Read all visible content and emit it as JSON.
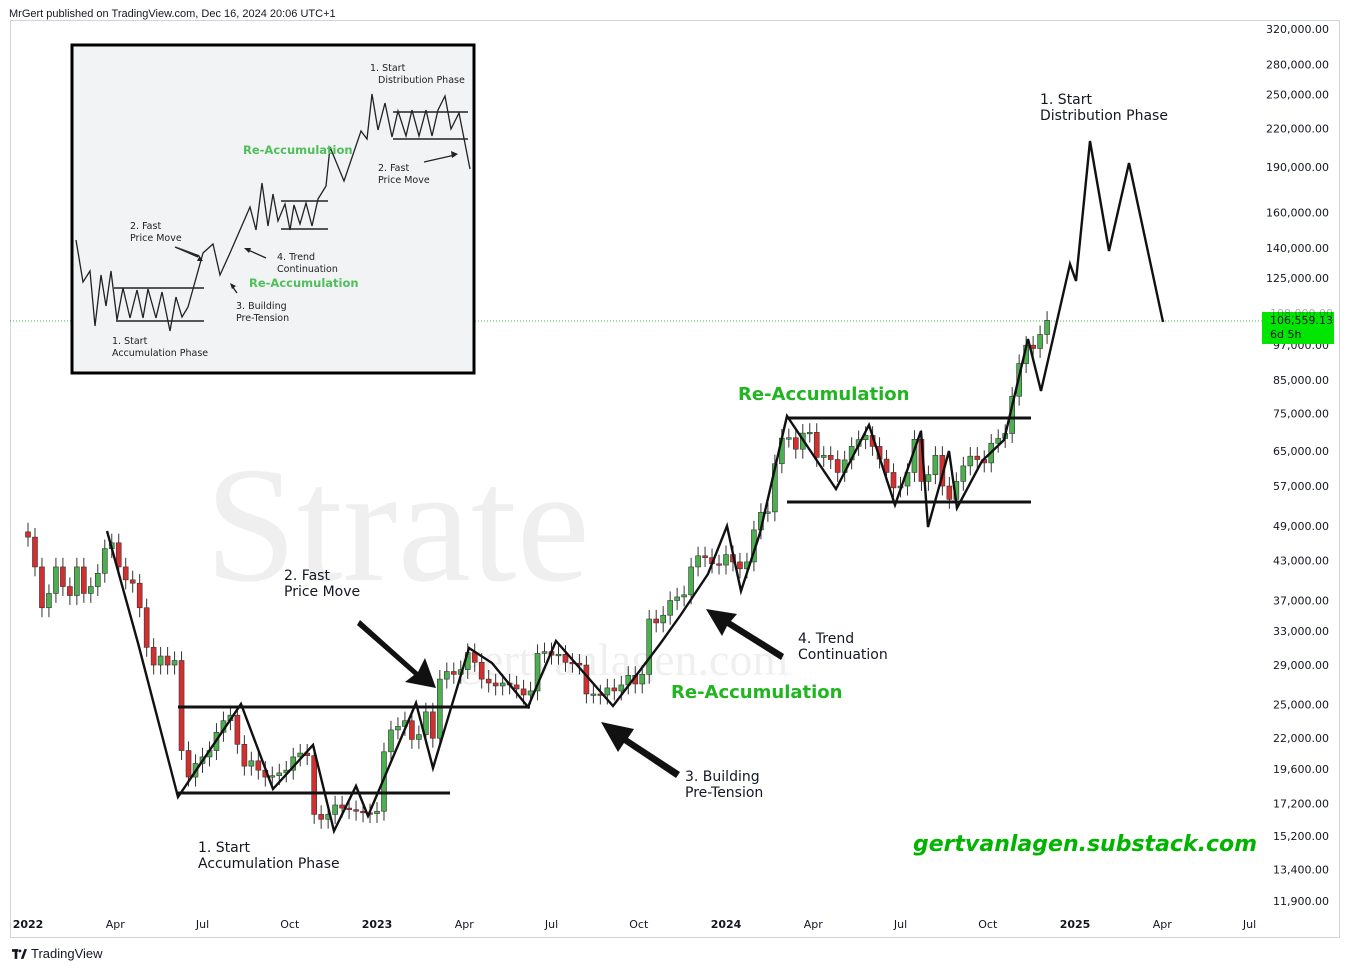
{
  "header": {
    "published_text": "MrGert published on TradingView.com, Dec 16, 2024 20:06 UTC+1"
  },
  "footer": {
    "logo_text": "TradingView"
  },
  "watermark": {
    "main_text": "Strate",
    "url_text": "gertvanlagen.com"
  },
  "colors": {
    "bull": "#4caf50",
    "bear": "#d32f2f",
    "green_text": "#22b522",
    "price_tag": "#00e600",
    "link": "#00b400"
  },
  "chart_data": {
    "type": "candlestick",
    "scale": "log",
    "y_ticks": [
      320000,
      280000,
      250000,
      220000,
      190000,
      160000,
      140000,
      125000,
      108000,
      97000,
      85000,
      75000,
      65000,
      57000,
      49000,
      43000,
      37000,
      33000,
      29000,
      25000,
      22000,
      19600,
      17200,
      15200,
      13400,
      11900
    ],
    "y_tick_labels": [
      "320,000.00",
      "280,000.00",
      "250,000.00",
      "220,000.00",
      "190,000.00",
      "160,000.00",
      "140,000.00",
      "125,000.00",
      "108,000.00",
      "97,000.00",
      "85,000.00",
      "75,000.00",
      "65,000.00",
      "57,000.00",
      "49,000.00",
      "43,000.00",
      "37,000.00",
      "33,000.00",
      "29,000.00",
      "25,000.00",
      "22,000.00",
      "19,600.00",
      "17,200.00",
      "15,200.00",
      "13,400.00",
      "11,900.00"
    ],
    "x_ticks": [
      {
        "label": "2022",
        "year": true,
        "t": 2022.0
      },
      {
        "label": "Apr",
        "year": false,
        "t": 2022.25
      },
      {
        "label": "Jul",
        "year": false,
        "t": 2022.5
      },
      {
        "label": "Oct",
        "year": false,
        "t": 2022.75
      },
      {
        "label": "2023",
        "year": true,
        "t": 2023.0
      },
      {
        "label": "Apr",
        "year": false,
        "t": 2023.25
      },
      {
        "label": "Jul",
        "year": false,
        "t": 2023.5
      },
      {
        "label": "Oct",
        "year": false,
        "t": 2023.75
      },
      {
        "label": "2024",
        "year": true,
        "t": 2024.0
      },
      {
        "label": "Apr",
        "year": false,
        "t": 2024.25
      },
      {
        "label": "Jul",
        "year": false,
        "t": 2024.5
      },
      {
        "label": "Oct",
        "year": false,
        "t": 2024.75
      },
      {
        "label": "2025",
        "year": true,
        "t": 2025.0
      },
      {
        "label": "Apr",
        "year": false,
        "t": 2025.25
      },
      {
        "label": "Jul",
        "year": false,
        "t": 2025.5
      }
    ],
    "current_price": {
      "value": 106559.13,
      "label": "106,559.13",
      "countdown": "6d 5h",
      "hidden_tick": "108,000.00"
    },
    "candles_weekly_close": [
      [
        2022.0,
        47000
      ],
      [
        2022.02,
        42000
      ],
      [
        2022.04,
        36000
      ],
      [
        2022.06,
        38000
      ],
      [
        2022.08,
        42000
      ],
      [
        2022.1,
        39000
      ],
      [
        2022.12,
        37700
      ],
      [
        2022.14,
        42000
      ],
      [
        2022.16,
        38000
      ],
      [
        2022.18,
        39000
      ],
      [
        2022.2,
        41000
      ],
      [
        2022.22,
        45000
      ],
      [
        2022.24,
        46000
      ],
      [
        2022.26,
        42000
      ],
      [
        2022.28,
        40000
      ],
      [
        2022.3,
        39500
      ],
      [
        2022.32,
        36000
      ],
      [
        2022.34,
        31000
      ],
      [
        2022.36,
        29000
      ],
      [
        2022.38,
        30000
      ],
      [
        2022.4,
        29000
      ],
      [
        2022.42,
        29500
      ],
      [
        2022.44,
        21000
      ],
      [
        2022.46,
        19000
      ],
      [
        2022.48,
        20000
      ],
      [
        2022.5,
        20500
      ],
      [
        2022.52,
        21000
      ],
      [
        2022.54,
        22500
      ],
      [
        2022.56,
        23500
      ],
      [
        2022.58,
        24000
      ],
      [
        2022.6,
        21500
      ],
      [
        2022.62,
        19800
      ],
      [
        2022.64,
        20200
      ],
      [
        2022.66,
        19500
      ],
      [
        2022.68,
        19000
      ],
      [
        2022.7,
        19100
      ],
      [
        2022.72,
        19300
      ],
      [
        2022.74,
        19500
      ],
      [
        2022.76,
        20500
      ],
      [
        2022.78,
        20800
      ],
      [
        2022.8,
        20600
      ],
      [
        2022.82,
        16500
      ],
      [
        2022.84,
        16200
      ],
      [
        2022.86,
        16500
      ],
      [
        2022.88,
        17100
      ],
      [
        2022.9,
        16900
      ],
      [
        2022.92,
        16800
      ],
      [
        2022.94,
        16700
      ],
      [
        2022.96,
        16600
      ],
      [
        2022.98,
        16550
      ],
      [
        2023.0,
        16700
      ],
      [
        2023.02,
        20900
      ],
      [
        2023.04,
        22700
      ],
      [
        2023.06,
        23000
      ],
      [
        2023.08,
        23500
      ],
      [
        2023.1,
        21900
      ],
      [
        2023.12,
        22300
      ],
      [
        2023.14,
        24300
      ],
      [
        2023.16,
        22000
      ],
      [
        2023.18,
        27500
      ],
      [
        2023.2,
        28300
      ],
      [
        2023.22,
        28000
      ],
      [
        2023.24,
        28500
      ],
      [
        2023.26,
        30400
      ],
      [
        2023.28,
        29300
      ],
      [
        2023.3,
        27500
      ],
      [
        2023.32,
        27100
      ],
      [
        2023.34,
        26800
      ],
      [
        2023.36,
        27100
      ],
      [
        2023.38,
        26900
      ],
      [
        2023.4,
        26500
      ],
      [
        2023.42,
        25900
      ],
      [
        2023.44,
        26300
      ],
      [
        2023.46,
        30300
      ],
      [
        2023.48,
        30500
      ],
      [
        2023.5,
        30100
      ],
      [
        2023.52,
        30200
      ],
      [
        2023.54,
        29300
      ],
      [
        2023.56,
        29200
      ],
      [
        2023.58,
        29000
      ],
      [
        2023.6,
        26000
      ],
      [
        2023.62,
        26000
      ],
      [
        2023.64,
        25900
      ],
      [
        2023.66,
        26600
      ],
      [
        2023.68,
        26300
      ],
      [
        2023.7,
        26900
      ],
      [
        2023.72,
        27900
      ],
      [
        2023.74,
        27000
      ],
      [
        2023.76,
        28000
      ],
      [
        2023.78,
        34500
      ],
      [
        2023.8,
        34000
      ],
      [
        2023.82,
        35000
      ],
      [
        2023.84,
        37000
      ],
      [
        2023.86,
        37500
      ],
      [
        2023.88,
        37800
      ],
      [
        2023.9,
        42000
      ],
      [
        2023.92,
        43800
      ],
      [
        2023.94,
        43500
      ],
      [
        2023.96,
        42500
      ],
      [
        2023.98,
        42300
      ],
      [
        2024.0,
        44000
      ],
      [
        2024.02,
        42800
      ],
      [
        2024.04,
        41700
      ],
      [
        2024.06,
        42800
      ],
      [
        2024.08,
        48300
      ],
      [
        2024.1,
        51600
      ],
      [
        2024.12,
        51700
      ],
      [
        2024.14,
        62000
      ],
      [
        2024.16,
        68300
      ],
      [
        2024.18,
        68400
      ],
      [
        2024.2,
        65500
      ],
      [
        2024.22,
        69600
      ],
      [
        2024.24,
        69800
      ],
      [
        2024.26,
        63500
      ],
      [
        2024.28,
        64000
      ],
      [
        2024.3,
        63000
      ],
      [
        2024.32,
        60000
      ],
      [
        2024.34,
        62900
      ],
      [
        2024.36,
        66200
      ],
      [
        2024.38,
        67900
      ],
      [
        2024.4,
        69000
      ],
      [
        2024.42,
        66200
      ],
      [
        2024.44,
        63100
      ],
      [
        2024.46,
        60000
      ],
      [
        2024.48,
        56600
      ],
      [
        2024.5,
        57000
      ],
      [
        2024.52,
        60000
      ],
      [
        2024.54,
        68000
      ],
      [
        2024.56,
        58000
      ],
      [
        2024.58,
        59500
      ],
      [
        2024.6,
        64000
      ],
      [
        2024.62,
        57000
      ],
      [
        2024.64,
        54200
      ],
      [
        2024.66,
        58000
      ],
      [
        2024.68,
        61500
      ],
      [
        2024.7,
        63800
      ],
      [
        2024.72,
        63000
      ],
      [
        2024.74,
        62200
      ],
      [
        2024.76,
        67000
      ],
      [
        2024.78,
        68200
      ],
      [
        2024.8,
        69500
      ],
      [
        2024.82,
        80000
      ],
      [
        2024.84,
        90500
      ],
      [
        2024.86,
        97000
      ],
      [
        2024.88,
        95800
      ],
      [
        2024.9,
        101000
      ],
      [
        2024.92,
        106559
      ]
    ],
    "projection_path": [
      [
        2024.9,
        101000
      ],
      [
        2024.96,
        123000
      ],
      [
        2025.0,
        213000
      ],
      [
        2025.1,
        145000
      ],
      [
        2025.15,
        200000
      ],
      [
        2025.25,
        107000
      ]
    ],
    "annotations": {
      "start_accumulation": "1. Start\nAccumulation Phase",
      "fast_price_move": "2. Fast\nPrice Move",
      "building_pretension": "3. Building\nPre-Tension",
      "trend_continuation": "4. Trend\nContinuation",
      "reaccumulation_1": "Re-Accumulation",
      "reaccumulation_2": "Re-Accumulation",
      "start_distribution": "1. Start\nDistribution Phase",
      "substack_link": "gertvanlagen.substack.com"
    },
    "inset": {
      "texts": {
        "start_accumulation": "1. Start\nAccumulation Phase",
        "fast_price_move": "2. Fast\nPrice Move",
        "building_pretension": "3. Building\nPre-Tension",
        "trend_continuation": "4. Trend\nContinuation",
        "reaccumulation_a": "Re-Accumulation",
        "reaccumulation_b": "Re-Accumulation",
        "start_distribution": "1. Start\nDistribution Phase",
        "fast_price_move_2": "2. Fast\nPrice Move"
      }
    }
  }
}
